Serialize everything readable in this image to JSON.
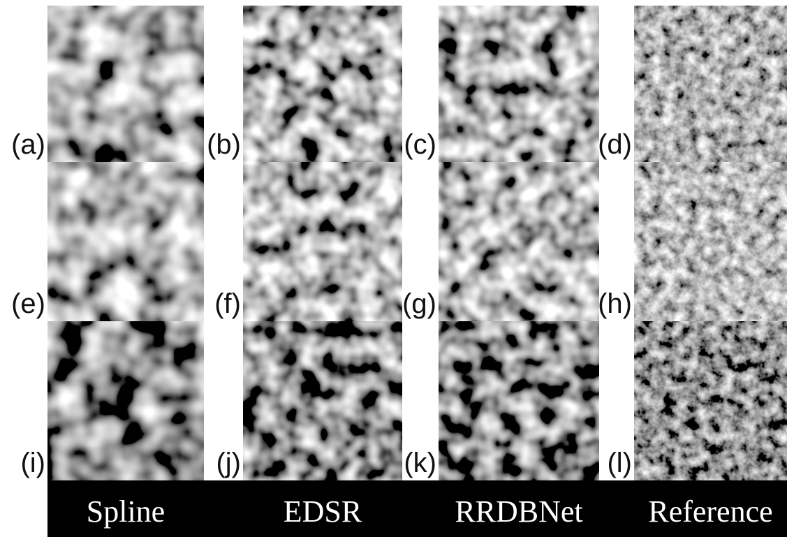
{
  "rows": [
    [
      "(a)",
      "(b)",
      "(c)",
      "(d)"
    ],
    [
      "(e)",
      "(f)",
      "(g)",
      "(h)"
    ],
    [
      "(i)",
      "(j)",
      "(k)",
      "(l)"
    ]
  ],
  "columns": [
    "Spline",
    "EDSR",
    "RRDBNet",
    "Reference"
  ]
}
